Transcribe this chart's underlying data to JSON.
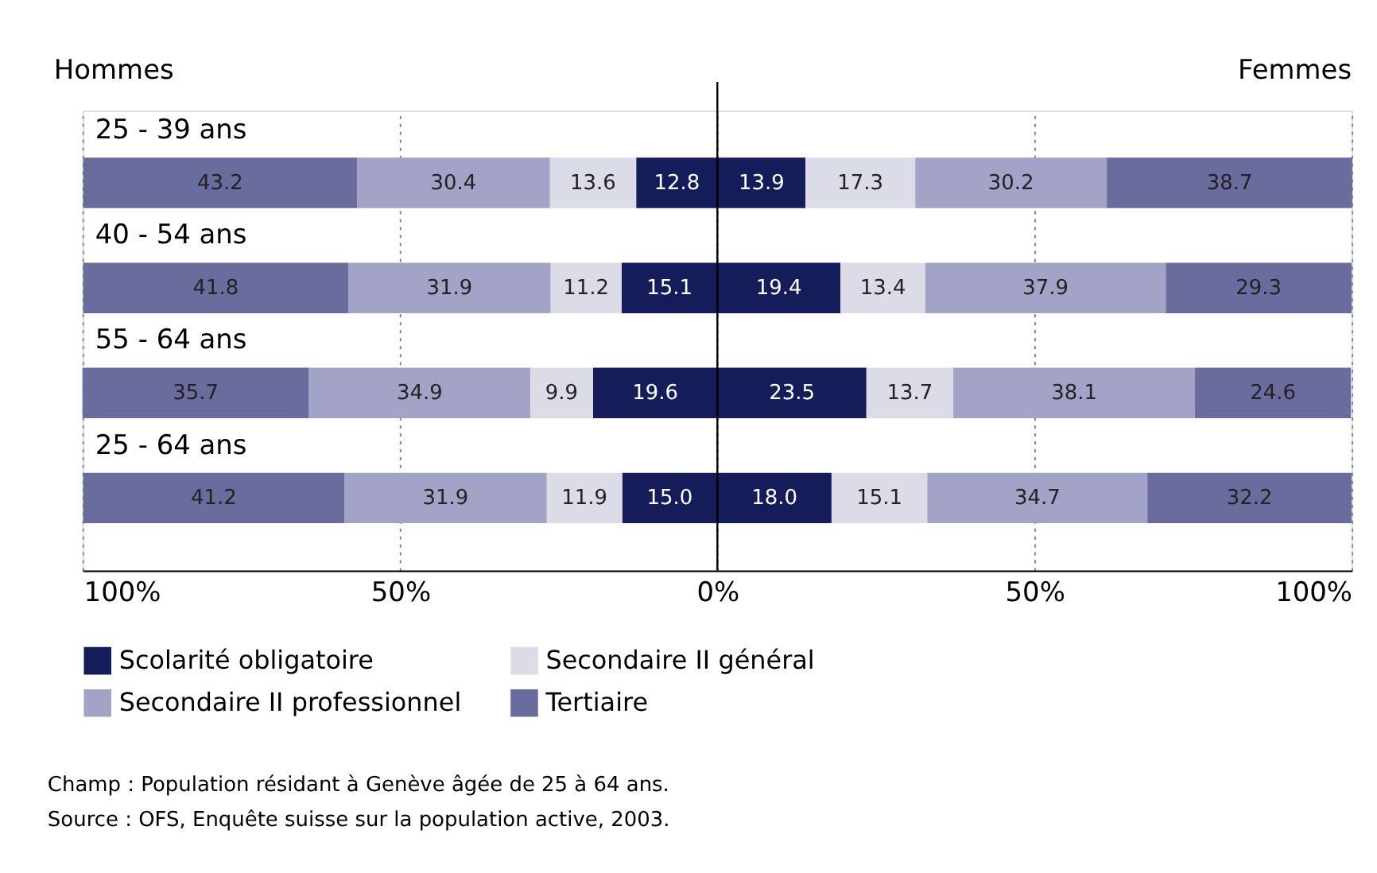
{
  "chart_data": {
    "type": "bar",
    "orientation": "horizontal",
    "categories": [
      "25 - 39 ans",
      "40 - 54 ans",
      "55 - 64 ans",
      "25 - 64 ans"
    ],
    "series": [
      {
        "name": "Scolarité obligatoire",
        "color": "#141c5a",
        "values": [
          13.9,
          19.4,
          23.5,
          18.0
        ],
        "base": [
          0,
          0,
          0,
          0
        ],
        "value_labels": [
          "13.9",
          "19.4",
          "23.5",
          "18.0"
        ]
      },
      {
        "name": "Secondaire II général",
        "color": "#dcdbe8",
        "values": [
          17.3,
          13.4,
          13.7,
          15.1
        ],
        "base": [
          13.9,
          19.4,
          23.5,
          18.0
        ],
        "value_labels": [
          "17.3",
          "13.4",
          "13.7",
          "15.1"
        ]
      },
      {
        "name": "Secondaire II professionnel",
        "color": "#a2a3c6",
        "values": [
          30.2,
          37.9,
          38.1,
          34.7
        ],
        "base": [
          31.2,
          32.8,
          37.2,
          33.1
        ],
        "value_labels": [
          "30.2",
          "37.9",
          "38.1",
          "34.7"
        ]
      },
      {
        "name": "Tertiaire",
        "color": "#6a6c9e",
        "values": [
          38.7,
          29.3,
          24.6,
          32.2
        ],
        "base": [
          61.4,
          70.7,
          75.3,
          67.8
        ],
        "value_labels": [
          "38.7",
          "29.3",
          "24.6",
          "32.2"
        ]
      },
      {
        "color": "#141c5a",
        "values": [
          12.8,
          15.1,
          19.6,
          15.0
        ],
        "base": [
          -12.8,
          -15.1,
          -19.6,
          -15.0
        ],
        "value_labels": [
          "12.8",
          "15.1",
          "19.6",
          "15.0"
        ]
      },
      {
        "color": "#dcdbe8",
        "values": [
          13.6,
          11.2,
          9.9,
          11.9
        ],
        "base": [
          -26.4,
          -26.3,
          -29.5,
          -26.9
        ],
        "value_labels": [
          "13.6",
          "11.2",
          "9.9",
          "11.9"
        ]
      },
      {
        "color": "#a2a3c6",
        "values": [
          30.4,
          31.9,
          34.9,
          31.9
        ],
        "base": [
          -56.8,
          -58.2,
          -64.4,
          -58.8
        ],
        "value_labels": [
          "30.4",
          "31.9",
          "34.9",
          "31.9"
        ]
      },
      {
        "color": "#6a6c9e",
        "values": [
          43.2,
          41.8,
          35.7,
          41.2
        ],
        "base": [
          -100.0,
          -100.0,
          -100.1,
          -100.0
        ],
        "value_labels": [
          "43.2",
          "41.8",
          "35.7",
          "41.2"
        ]
      }
    ],
    "xlim": [
      -100.1,
      100
    ],
    "xticks": [
      {
        "value": -100,
        "label": "100%"
      },
      {
        "value": -50,
        "label": "50%"
      },
      {
        "value": 0,
        "label": "0%"
      },
      {
        "value": 50,
        "label": "50%"
      },
      {
        "value": 100,
        "label": "100%"
      }
    ],
    "grid": "x",
    "legend": "bottom",
    "ref_lines": [
      {
        "axis": "x",
        "value": 0,
        "color": "#000000"
      }
    ],
    "annotations": [
      "Hommes",
      "Femmes",
      "Champ : Population résidant à Genève âgée de 25 à 64 ans.",
      "Source : OFS, Enquête suisse sur la population active, 2003."
    ]
  }
}
